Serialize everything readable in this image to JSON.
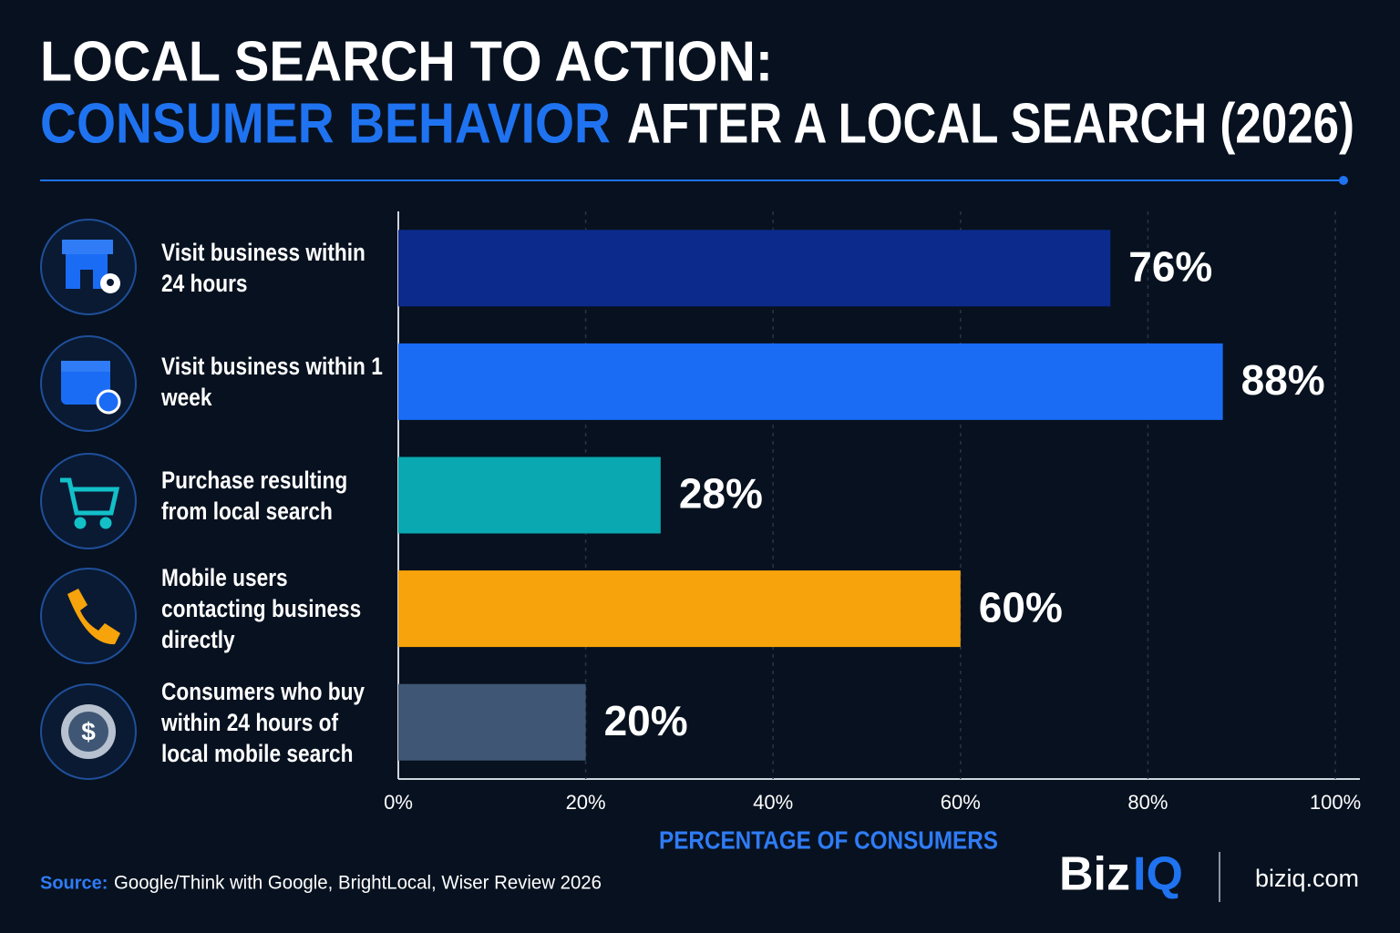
{
  "chart_data": {
    "type": "bar",
    "title": "LOCAL SEARCH TO ACTION:",
    "subtitle_highlight": "CONSUMER BEHAVIOR",
    "subtitle": "AFTER A LOCAL SEARCH (2026)",
    "categories": [
      "Visit business within 24 hours",
      "Visit business within 1 week",
      "Purchase resulting from local search",
      "Mobile users contacting business directly",
      "Consumers who buy within 24 hours of local mobile search"
    ],
    "values": [
      76,
      88,
      28,
      60,
      20
    ],
    "value_labels": [
      "76%",
      "88%",
      "28%",
      "60%",
      "20%"
    ],
    "colors": [
      "#0b2a8c",
      "#1a6cf5",
      "#0aa8b0",
      "#f7a30b",
      "#3f5774"
    ],
    "xlim": [
      0,
      100
    ],
    "xticks": [
      {
        "value": 0,
        "label": "0%"
      },
      {
        "value": 20,
        "label": "20%"
      },
      {
        "value": 40,
        "label": "40%"
      },
      {
        "value": 60,
        "label": "60%"
      },
      {
        "value": 80,
        "label": "80%"
      },
      {
        "value": 100,
        "label": "100%"
      }
    ],
    "xlabel": "PERCENTAGE OF CONSUMERS",
    "grid": true,
    "source_label": "Source:",
    "source": "Google/Think with Google, BrightLocal, Wiser Review 2026",
    "brand_part1": "Biz",
    "brand_part2": "IQ",
    "website": "biziq.com"
  }
}
